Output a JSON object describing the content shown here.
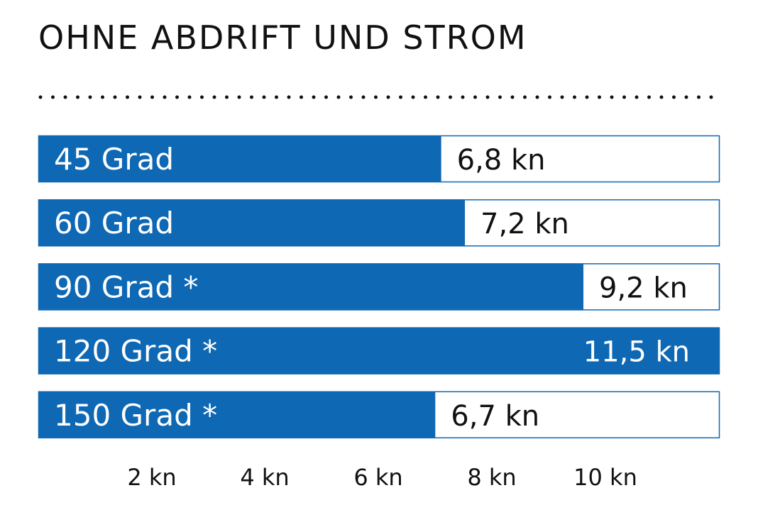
{
  "chart_data": {
    "type": "bar",
    "orientation": "horizontal",
    "title": "OHNE ABDRIFT UND STROM",
    "categories": [
      "45 Grad",
      "60 Grad",
      "90 Grad *",
      "120 Grad *",
      "150 Grad *"
    ],
    "values": [
      6.8,
      7.2,
      9.2,
      11.5,
      6.7
    ],
    "value_labels": [
      "6,8 kn",
      "7,2 kn",
      "9,2 kn",
      "11,5 kn",
      "6,7 kn"
    ],
    "xlim": [
      0,
      11.5
    ],
    "xticks": [
      2,
      4,
      6,
      8,
      10
    ],
    "xtick_labels": [
      "2 kn",
      "4 kn",
      "6 kn",
      "8 kn",
      "10 kn"
    ],
    "grid": false,
    "bar_color": "#0f68b4",
    "track_border_color": "#0f68b4"
  }
}
